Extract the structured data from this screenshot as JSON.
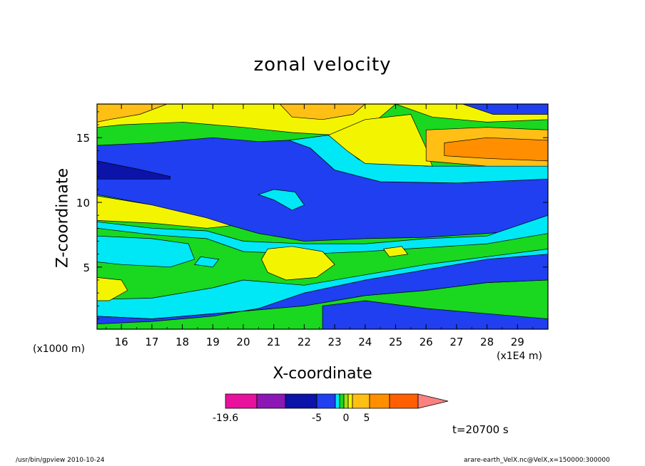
{
  "chart_data": {
    "type": "heatmap",
    "title": "zonal velocity",
    "xlabel": "X-coordinate",
    "ylabel": "Z-coordinate",
    "x_units": "(x1E4 m)",
    "y_units": "(x1000 m)",
    "xlim": [
      15.2,
      30.0
    ],
    "ylim": [
      0.2,
      17.6
    ],
    "x_ticks": [
      16,
      17,
      18,
      19,
      20,
      21,
      22,
      23,
      24,
      25,
      26,
      27,
      28,
      29
    ],
    "y_ticks": [
      5,
      10,
      15
    ],
    "time_label": "t=20700 s",
    "colorbar": {
      "tick_labels": [
        "-19.6",
        "-5",
        "0",
        "5"
      ],
      "levels": [
        -19.6,
        -15,
        -10,
        -5,
        -2,
        -1,
        0,
        1,
        2,
        5,
        10,
        15,
        20
      ],
      "colors": [
        "#e8119d",
        "#8b17b6",
        "#0b13a8",
        "#1f3ff0",
        "#00e7f5",
        "#19d81f",
        "#9be01a",
        "#f3f500",
        "#ffbf14",
        "#ff8f00",
        "#ff5f00",
        "#f5111b"
      ],
      "extend_color": "#fb8181"
    },
    "regions": [
      {
        "level": "green",
        "value": 1.5,
        "polygon": [
          [
            15.2,
            0.2
          ],
          [
            30,
            0.2
          ],
          [
            30,
            17.6
          ],
          [
            15.2,
            17.6
          ]
        ]
      },
      {
        "level": "blue",
        "value": -3,
        "polygon": [
          [
            15.2,
            14.4
          ],
          [
            17,
            14.6
          ],
          [
            19,
            15.0
          ],
          [
            20.5,
            14.7
          ],
          [
            21.5,
            14.8
          ],
          [
            22.2,
            14.2
          ],
          [
            23,
            12.5
          ],
          [
            24.5,
            11.6
          ],
          [
            27,
            11.5
          ],
          [
            30,
            11.8
          ],
          [
            30,
            8.0
          ],
          [
            28,
            7.6
          ],
          [
            26,
            7.3
          ],
          [
            24,
            7.2
          ],
          [
            22,
            7.0
          ],
          [
            20.5,
            7.6
          ],
          [
            19,
            8.6
          ],
          [
            17,
            9.8
          ],
          [
            15.2,
            10.6
          ]
        ]
      },
      {
        "level": "navy",
        "value": -7,
        "polygon": [
          [
            15.2,
            13.2
          ],
          [
            16.5,
            12.6
          ],
          [
            17.6,
            12.0
          ],
          [
            17.6,
            11.8
          ],
          [
            15.2,
            11.8
          ]
        ]
      },
      {
        "level": "cyan",
        "value": -1.5,
        "polygon": [
          [
            21.0,
            11.0
          ],
          [
            21.7,
            10.8
          ],
          [
            22.0,
            9.8
          ],
          [
            21.6,
            9.4
          ],
          [
            21.0,
            10.2
          ],
          [
            20.5,
            10.6
          ]
        ]
      },
      {
        "level": "cyan",
        "value": -1.5,
        "polygon": [
          [
            15.2,
            8.5
          ],
          [
            17,
            8.0
          ],
          [
            18.8,
            7.8
          ],
          [
            20,
            7.0
          ],
          [
            22,
            6.8
          ],
          [
            24,
            6.8
          ],
          [
            26,
            7.2
          ],
          [
            28,
            7.4
          ],
          [
            30,
            9.0
          ],
          [
            30,
            11.8
          ],
          [
            27,
            11.5
          ],
          [
            24.5,
            11.6
          ],
          [
            23,
            12.5
          ],
          [
            22.2,
            14.2
          ],
          [
            21.5,
            14.8
          ],
          [
            22.8,
            15.2
          ],
          [
            23.8,
            13.3
          ],
          [
            26,
            12.8
          ],
          [
            30,
            12.8
          ],
          [
            30,
            7.6
          ],
          [
            28,
            6.8
          ],
          [
            26,
            6.5
          ],
          [
            24,
            6.2
          ],
          [
            22,
            6.0
          ],
          [
            20,
            6.2
          ],
          [
            18.8,
            7.2
          ],
          [
            17,
            7.5
          ],
          [
            15.2,
            8.0
          ]
        ]
      },
      {
        "level": "yellow",
        "value": 3,
        "polygon": [
          [
            15.2,
            10.5
          ],
          [
            17,
            9.8
          ],
          [
            18.8,
            8.8
          ],
          [
            19.6,
            8.2
          ],
          [
            18.8,
            8.0
          ],
          [
            17,
            8.4
          ],
          [
            15.2,
            8.6
          ]
        ]
      },
      {
        "level": "blue",
        "value": -3,
        "polygon": [
          [
            15.2,
            7.0
          ],
          [
            16.4,
            6.6
          ],
          [
            16.6,
            6.0
          ],
          [
            16,
            5.6
          ],
          [
            15.2,
            5.6
          ]
        ]
      },
      {
        "level": "cyan",
        "value": -1.5,
        "polygon": [
          [
            15.2,
            7.4
          ],
          [
            17,
            7.2
          ],
          [
            18.2,
            6.8
          ],
          [
            18.4,
            5.6
          ],
          [
            17.6,
            5.0
          ],
          [
            16,
            5.2
          ],
          [
            15.2,
            5.4
          ]
        ]
      },
      {
        "level": "cyan",
        "value": -1.5,
        "polygon": [
          [
            18.6,
            5.8
          ],
          [
            19.2,
            5.6
          ],
          [
            19.0,
            5.0
          ],
          [
            18.4,
            5.2
          ]
        ]
      },
      {
        "level": "yellow",
        "value": 3,
        "polygon": [
          [
            20.8,
            6.4
          ],
          [
            21.6,
            6.6
          ],
          [
            22.6,
            6.2
          ],
          [
            23.0,
            5.2
          ],
          [
            22.4,
            4.2
          ],
          [
            21.4,
            4.0
          ],
          [
            20.8,
            4.6
          ],
          [
            20.6,
            5.6
          ]
        ]
      },
      {
        "level": "yellow",
        "value": 3,
        "polygon": [
          [
            24.6,
            6.4
          ],
          [
            25.2,
            6.6
          ],
          [
            25.4,
            6.0
          ],
          [
            24.8,
            5.8
          ]
        ]
      },
      {
        "level": "cyan",
        "value": -1.5,
        "polygon": [
          [
            15.2,
            2.5
          ],
          [
            17,
            2.6
          ],
          [
            19,
            3.4
          ],
          [
            20,
            4.0
          ],
          [
            22,
            3.6
          ],
          [
            24,
            4.4
          ],
          [
            26,
            5.2
          ],
          [
            28,
            5.8
          ],
          [
            30,
            6.4
          ],
          [
            30,
            4.0
          ],
          [
            28,
            3.8
          ],
          [
            26,
            3.2
          ],
          [
            24,
            2.8
          ],
          [
            22,
            2.0
          ],
          [
            20,
            1.6
          ],
          [
            17,
            1.0
          ],
          [
            15.2,
            1.2
          ]
        ]
      },
      {
        "level": "blue",
        "value": -3,
        "polygon": [
          [
            15.2,
            1.2
          ],
          [
            17,
            1.0
          ],
          [
            20,
            1.6
          ],
          [
            22,
            2.0
          ],
          [
            24,
            2.8
          ],
          [
            26,
            3.2
          ],
          [
            28,
            3.8
          ],
          [
            30,
            4.0
          ],
          [
            30,
            6.0
          ],
          [
            28,
            5.6
          ],
          [
            26,
            4.8
          ],
          [
            24,
            4.0
          ],
          [
            22,
            3.0
          ],
          [
            20.5,
            1.8
          ],
          [
            19,
            1.2
          ],
          [
            17,
            0.8
          ],
          [
            15.2,
            0.6
          ]
        ]
      },
      {
        "level": "blue",
        "value": -3,
        "polygon": [
          [
            22.6,
            0.2
          ],
          [
            30,
            0.2
          ],
          [
            30,
            1.0
          ],
          [
            28,
            1.4
          ],
          [
            26,
            1.8
          ],
          [
            24,
            2.4
          ],
          [
            22.6,
            2.0
          ]
        ]
      },
      {
        "level": "yellow",
        "value": 3,
        "polygon": [
          [
            15.2,
            4.2
          ],
          [
            16,
            4.0
          ],
          [
            16.2,
            3.2
          ],
          [
            15.6,
            2.4
          ],
          [
            15.2,
            2.4
          ]
        ]
      },
      {
        "level": "yellow",
        "value": 3,
        "polygon": [
          [
            15.2,
            17.6
          ],
          [
            30,
            17.6
          ],
          [
            30,
            16.4
          ],
          [
            28,
            16.2
          ],
          [
            26.2,
            16.6
          ],
          [
            25,
            17.6
          ],
          [
            24.2,
            16.0
          ],
          [
            23,
            15.2
          ],
          [
            21.6,
            15.4
          ],
          [
            20,
            15.8
          ],
          [
            18,
            16.2
          ],
          [
            16,
            16.0
          ],
          [
            15.2,
            15.8
          ]
        ]
      },
      {
        "level": "yellow",
        "value": 3,
        "polygon": [
          [
            22.8,
            15.2
          ],
          [
            24,
            16.4
          ],
          [
            25.5,
            16.8
          ],
          [
            26,
            14.2
          ],
          [
            26.2,
            12.8
          ],
          [
            24,
            13.0
          ],
          [
            23.4,
            14.0
          ]
        ]
      },
      {
        "level": "lightorange",
        "value": 7,
        "polygon": [
          [
            15.2,
            17.6
          ],
          [
            17.5,
            17.6
          ],
          [
            16.6,
            16.8
          ],
          [
            15.6,
            16.4
          ],
          [
            15.2,
            16.2
          ]
        ]
      },
      {
        "level": "lightorange",
        "value": 7,
        "polygon": [
          [
            21.2,
            17.6
          ],
          [
            24.0,
            17.6
          ],
          [
            23.6,
            16.8
          ],
          [
            22.6,
            16.4
          ],
          [
            21.6,
            16.6
          ]
        ]
      },
      {
        "level": "lightorange",
        "value": 7,
        "polygon": [
          [
            26.0,
            15.6
          ],
          [
            28,
            15.8
          ],
          [
            30,
            15.6
          ],
          [
            30,
            12.8
          ],
          [
            28,
            12.8
          ],
          [
            26,
            13.2
          ]
        ]
      },
      {
        "level": "orange",
        "value": 12,
        "polygon": [
          [
            26.6,
            14.6
          ],
          [
            28,
            15.0
          ],
          [
            30,
            14.8
          ],
          [
            30,
            13.2
          ],
          [
            28,
            13.4
          ],
          [
            26.6,
            13.6
          ]
        ]
      },
      {
        "level": "blue",
        "value": -3,
        "polygon": [
          [
            27.2,
            17.6
          ],
          [
            30,
            17.6
          ],
          [
            30,
            16.8
          ],
          [
            28.2,
            16.8
          ]
        ]
      }
    ]
  },
  "labels": {
    "title": "zonal velocity",
    "xlabel": "X-coordinate",
    "ylabel": "Z-coordinate",
    "y_units": "(x1000 m)",
    "x_units": "(x1E4 m)",
    "time": "t=20700 s",
    "footer_left": "/usr/bin/gpview   2010-10-24",
    "footer_right": "arare-earth_VelX.nc@VelX,x=150000:300000"
  }
}
